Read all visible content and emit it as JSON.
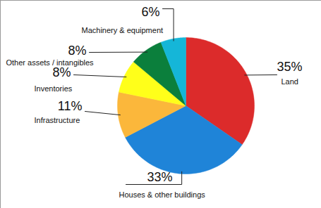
{
  "chart_data": {
    "type": "pie",
    "categories": [
      "Land",
      "Houses & other buildings",
      "Infrastructure",
      "Inventories",
      "Other assets / intangibles",
      "Machinery & equipment"
    ],
    "values": [
      35,
      33,
      11,
      8,
      8,
      6
    ],
    "value_labels": [
      "35%",
      "33%",
      "11%",
      "8%",
      "8%",
      "6%"
    ],
    "colors": [
      "#dc2b2b",
      "#1f84d8",
      "#fbb73b",
      "#ffff1a",
      "#0b7f3c",
      "#15b6d8"
    ],
    "data_labels": true
  }
}
